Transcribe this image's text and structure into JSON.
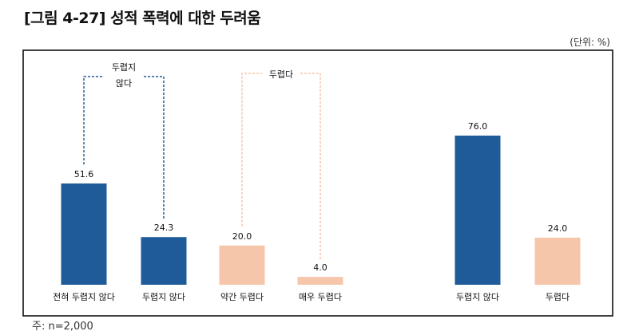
{
  "title": "[그림 4-27] 성적 폭력에 대한 두려움",
  "unit_label": "(단위: %)",
  "note": "주: n=2,000",
  "colors": {
    "not_afraid": "#1f5b99",
    "afraid": "#f6c6ab"
  },
  "chart_data": {
    "type": "bar",
    "title": "[그림 4-27] 성적 폭력에 대한 두려움",
    "ylabel": "",
    "xlabel": "",
    "ylim": [
      0,
      100
    ],
    "grid": false,
    "categories": [
      "전혀 두렵지 않다",
      "두렵지 않다",
      "약간 두렵다",
      "매우 두렵다",
      "두렵지 않다",
      "두렵다"
    ],
    "values": [
      51.6,
      24.3,
      20.0,
      4.0,
      76.0,
      24.0
    ],
    "value_labels": [
      "51.6",
      "24.3",
      "20.0",
      "4.0",
      "76.0",
      "24.0"
    ],
    "bar_colors": [
      "#1f5b99",
      "#1f5b99",
      "#f6c6ab",
      "#f6c6ab",
      "#1f5b99",
      "#f6c6ab"
    ],
    "annotations": [
      {
        "text_lines": [
          "두렵지",
          "않다"
        ],
        "groups": [
          0,
          1
        ],
        "color": "#1f5b99"
      },
      {
        "text_lines": [
          "두렵다"
        ],
        "groups": [
          2,
          3
        ],
        "color": "#f6c6ab"
      }
    ]
  }
}
